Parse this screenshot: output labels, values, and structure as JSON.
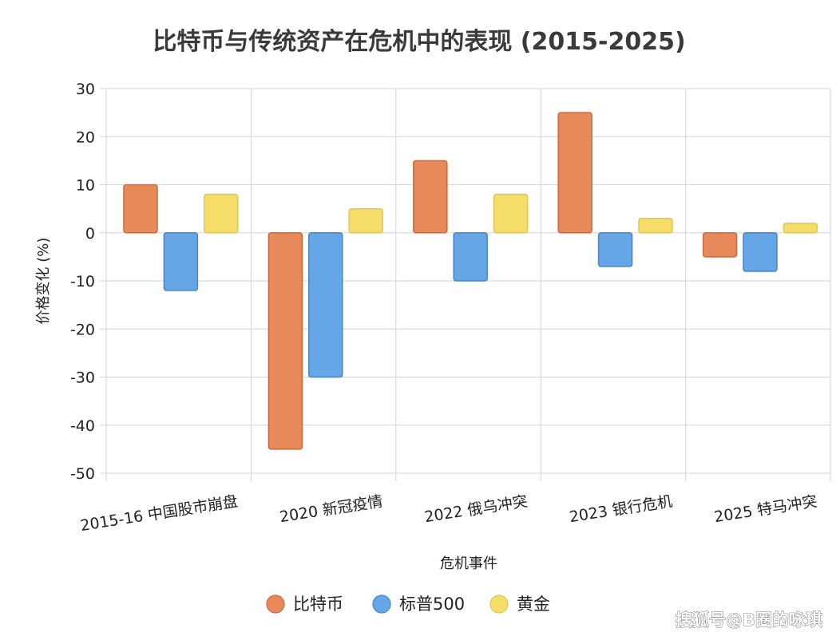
{
  "chart_data": {
    "type": "bar",
    "title": "比特币与传统资产在危机中的表现 (2015-2025)",
    "xlabel": "危机事件",
    "ylabel": "价格变化 (%)",
    "ylim": [
      -50,
      30
    ],
    "yticks": [
      30,
      20,
      10,
      0,
      -10,
      -20,
      -30,
      -40,
      -50
    ],
    "grid": true,
    "legend_position": "bottom",
    "categories": [
      "2015-16 中国股市崩盘",
      "2020 新冠疫情",
      "2022 俄乌冲突",
      "2023 银行危机",
      "2025 特马冲突"
    ],
    "series": [
      {
        "name": "比特币",
        "color": "#E8895A",
        "stroke": "#C96A3E",
        "values": [
          10,
          -45,
          15,
          25,
          -5
        ]
      },
      {
        "name": "标普500",
        "color": "#64A6E6",
        "stroke": "#4A86C2",
        "values": [
          -12,
          -30,
          -10,
          -7,
          -8
        ]
      },
      {
        "name": "黄金",
        "color": "#F6DD6A",
        "stroke": "#E2C650",
        "values": [
          8,
          5,
          8,
          3,
          2
        ]
      }
    ]
  },
  "watermark": "搜狐号@B圈的咏琪"
}
